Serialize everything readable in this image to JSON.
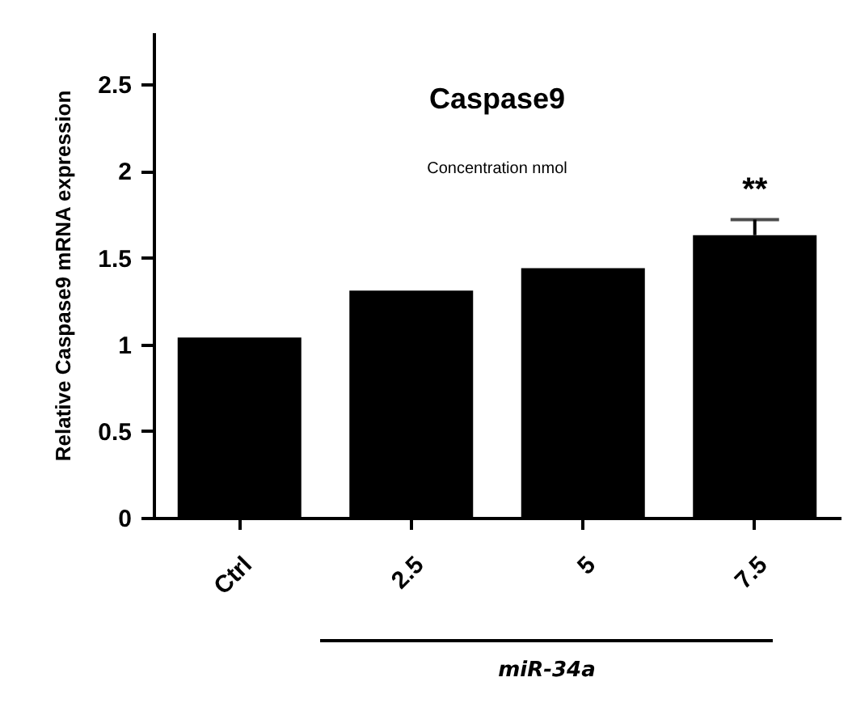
{
  "chart_data": {
    "type": "bar",
    "title": "Caspase9",
    "subtitle": "Concentration nmol",
    "ylabel": "Relative Caspase9 mRNA expression",
    "categories": [
      "Ctrl",
      "2.5",
      "5",
      "7.5"
    ],
    "values": [
      1.04,
      1.31,
      1.44,
      1.63
    ],
    "errors": [
      null,
      null,
      null,
      0.09
    ],
    "color": "#000000",
    "ylim": [
      0,
      2.8
    ],
    "yticks": [
      0,
      0.5,
      1,
      1.5,
      2,
      2.5
    ],
    "grid": false,
    "annotations": [
      {
        "text": "**",
        "x": "7.5",
        "y": 1.72
      },
      "miR-34a"
    ]
  }
}
